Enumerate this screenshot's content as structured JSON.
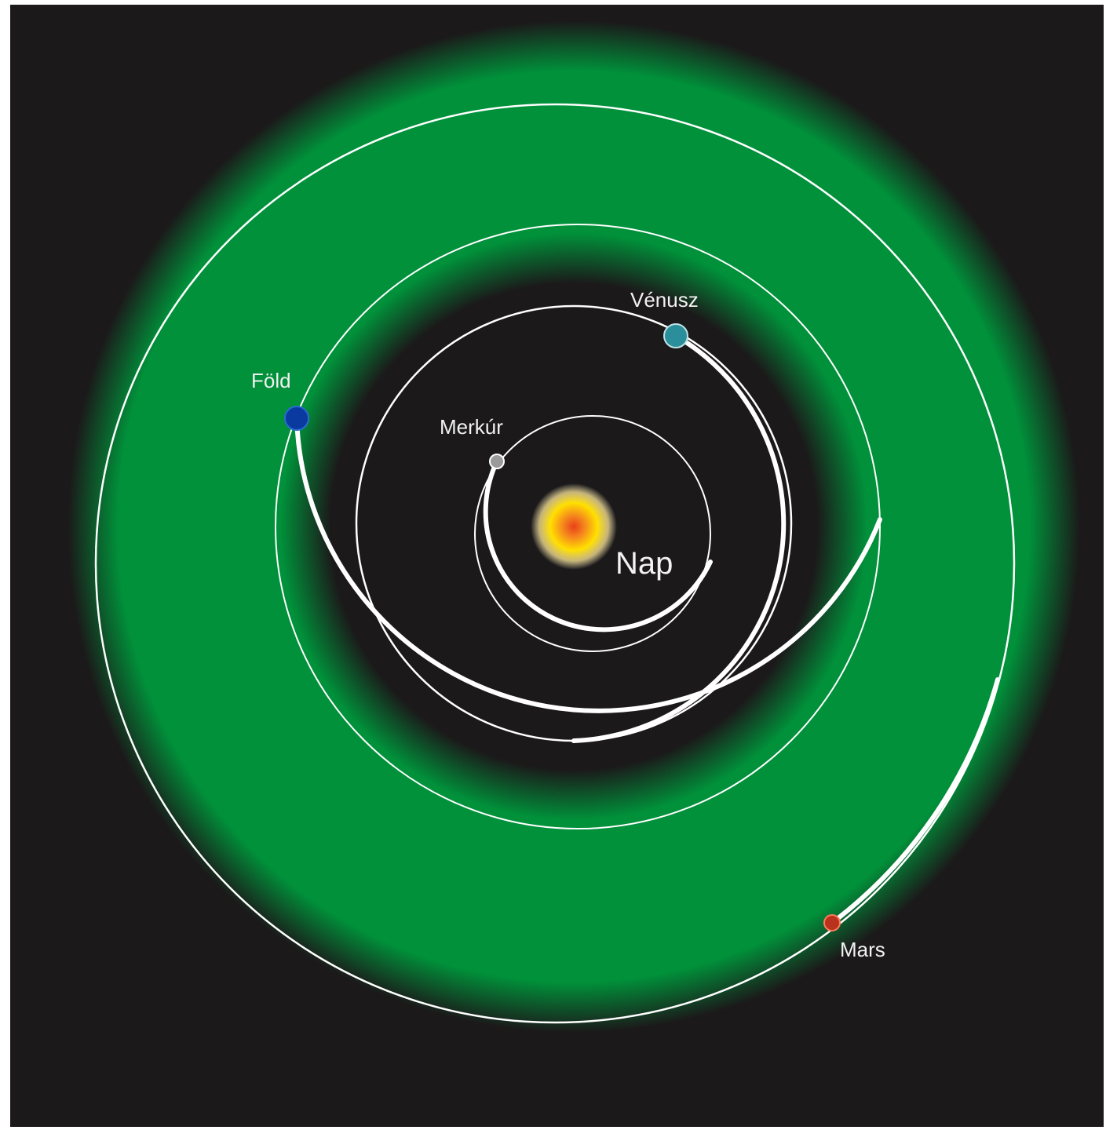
{
  "colors": {
    "background": "#1b191a",
    "habitable_zone": "#00913a",
    "orbit": "#ffffff",
    "sun_core": "#f05a1e",
    "sun_glow": "#ffe000"
  },
  "sun": {
    "label": "Nap"
  },
  "planets": [
    {
      "label": "Merkúr",
      "color": "#9a9a9a",
      "icon": "mercury-dot"
    },
    {
      "label": "Vénusz",
      "color": "#2a8f9a",
      "icon": "venus-dot"
    },
    {
      "label": "Föld",
      "color": "#0a3aa0",
      "icon": "earth-dot"
    },
    {
      "label": "Mars",
      "color": "#b8321e",
      "icon": "mars-dot"
    }
  ]
}
